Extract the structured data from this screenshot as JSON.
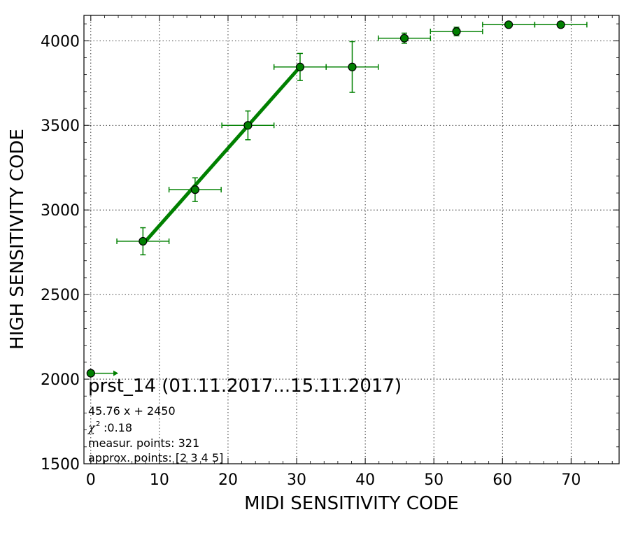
{
  "chart_data": {
    "type": "scatter",
    "xlabel": "MIDI SENSITIVITY CODE",
    "ylabel": "HIGH SENSITIVITY CODE",
    "xlim": [
      -1,
      77
    ],
    "ylim": [
      1500,
      4150
    ],
    "xticks": [
      0,
      10,
      20,
      30,
      40,
      50,
      60,
      70
    ],
    "yticks": [
      1500,
      2000,
      2500,
      3000,
      3500,
      4000
    ],
    "grid": true,
    "color": "#008000",
    "points": [
      {
        "x": 0.0,
        "y": 2035,
        "xerr": 0.0,
        "yerr": 0
      },
      {
        "x": 7.6,
        "y": 2815,
        "xerr": 3.8,
        "yerr": 80
      },
      {
        "x": 15.2,
        "y": 3120,
        "xerr": 3.8,
        "yerr": 70
      },
      {
        "x": 22.9,
        "y": 3500,
        "xerr": 3.8,
        "yerr": 85
      },
      {
        "x": 30.5,
        "y": 3845,
        "xerr": 3.8,
        "yerr": 80
      },
      {
        "x": 38.1,
        "y": 3845,
        "xerr": 3.8,
        "yerr": 150
      },
      {
        "x": 45.7,
        "y": 4015,
        "xerr": 3.8,
        "yerr": 30
      },
      {
        "x": 53.3,
        "y": 4055,
        "xerr": 3.8,
        "yerr": 25
      },
      {
        "x": 60.9,
        "y": 4095,
        "xerr": 3.8,
        "yerr": 10
      },
      {
        "x": 68.5,
        "y": 4095,
        "xerr": 3.8,
        "yerr": 10
      }
    ],
    "arrow": {
      "x_start": 0.0,
      "x_end": 4.0,
      "y": 2035
    },
    "fit_line": {
      "x_start": 7.6,
      "x_end": 30.5,
      "slope": 45.76,
      "intercept": 2450
    },
    "annotations": {
      "title": "prst_14 (01.11.2017...15.11.2017)",
      "equation": "45.76 x + 2450",
      "chi2": ":0.18",
      "measur": "measur. points: 321",
      "approx": "approx. points: [2 3 4 5]"
    }
  }
}
